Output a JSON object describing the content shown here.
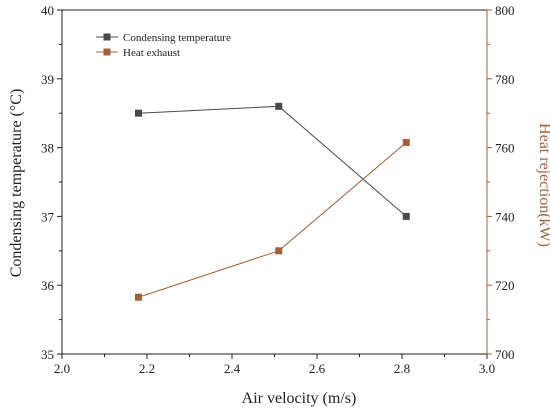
{
  "chart_data": {
    "type": "line",
    "xlabel": "Air velocity (m/s)",
    "ylabel": "Condensing temperature (°C)",
    "y2label": "Heat rejection(kW)",
    "xlim": [
      2.0,
      3.0
    ],
    "ylim": [
      35,
      40
    ],
    "y2lim": [
      700,
      800
    ],
    "x_ticks": [
      "2.0",
      "2.2",
      "2.4",
      "2.6",
      "2.8",
      "3.0"
    ],
    "y_ticks": [
      "35",
      "36",
      "37",
      "38",
      "39",
      "40"
    ],
    "y2_ticks": [
      "700",
      "720",
      "740",
      "760",
      "780",
      "800"
    ],
    "grid": false,
    "legend_position": "top-left",
    "series": [
      {
        "name": "Condensing temperature",
        "axis": "left",
        "color": "#4a4a4a",
        "x": [
          2.18,
          2.51,
          2.81
        ],
        "y": [
          38.5,
          38.6,
          37.0
        ]
      },
      {
        "name": "Heat exhaust",
        "axis": "right",
        "color": "#a0623c",
        "x": [
          2.18,
          2.51,
          2.81
        ],
        "y": [
          716.5,
          730,
          761.5
        ]
      }
    ],
    "left_axis_color": "#222222",
    "right_axis_color": "#a0623c"
  }
}
